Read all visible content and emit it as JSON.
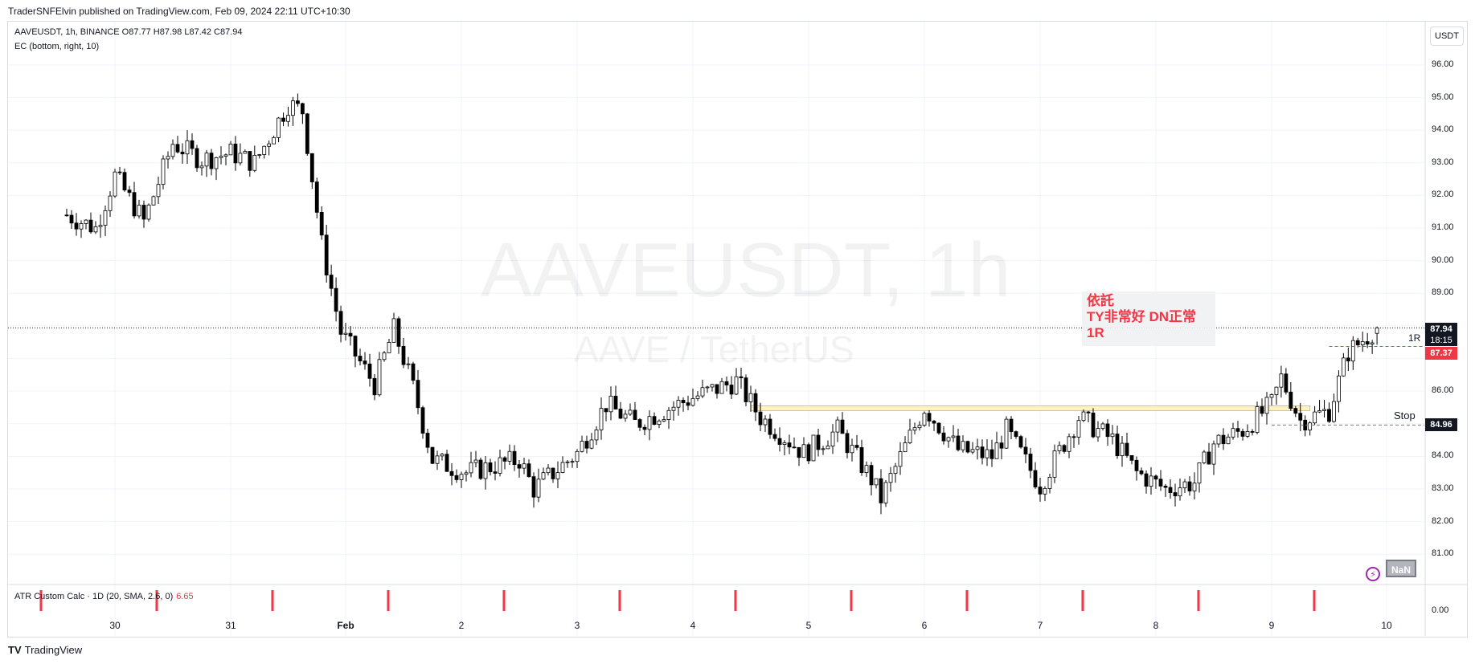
{
  "header": {
    "published": "TraderSNFElvin published on TradingView.com, Feb 09, 2024 22:11 UTC+10:30",
    "symbol_line": "AAVEUSDT, 1h, BINANCE  O87.77  H87.98  L87.42  C87.94",
    "indicator_line": "EC (bottom, right, 10)",
    "currency": "USDT"
  },
  "watermark": {
    "symbol": "AAVEUSDT, 1h",
    "description": "AAVE / TetherUS"
  },
  "note": {
    "lines": [
      "依託",
      "TY非常好 DN正常",
      "1R"
    ]
  },
  "right_labels": {
    "one_r": "1R",
    "stop": "Stop"
  },
  "price_tags": {
    "last": "87.94",
    "timer": "18:15",
    "target": "87.37",
    "stop": "84.96"
  },
  "nan_badge": "NaN",
  "atr": {
    "label": "ATR Custom Calc · 1D (20, SMA, 2.6, 0)",
    "value": "6.65",
    "bottom_axis": "0.00"
  },
  "footer": {
    "brand": "TradingView",
    "logo_glyph": "TV"
  },
  "colors": {
    "up": "#ffffff",
    "down": "#000000",
    "wick": "#000000",
    "accent": "#f23645",
    "zone": "#fff3c4",
    "grid": "#f0f3fa"
  },
  "chart_data": {
    "type": "candlestick",
    "symbol": "AAVEUSDT",
    "interval": "1h",
    "exchange": "BINANCE",
    "ylim": [
      81.0,
      96.0
    ],
    "y_ticks": [
      "96.00",
      "95.00",
      "94.00",
      "93.00",
      "92.00",
      "91.00",
      "90.00",
      "89.00",
      "88.00",
      "87.00",
      "86.00",
      "85.00",
      "84.00",
      "83.00",
      "82.00",
      "81.00"
    ],
    "x_ticks": [
      "30",
      "31",
      "Feb",
      "2",
      "3",
      "4",
      "5",
      "6",
      "7",
      "8",
      "9",
      "10"
    ],
    "last_ohlc": {
      "open": 87.77,
      "high": 87.98,
      "low": 87.42,
      "close": 87.94
    },
    "close_path": [
      {
        "date": "Jan 29 14:00",
        "close": 91.4
      },
      {
        "date": "Jan 29 20:00",
        "close": 91.0
      },
      {
        "date": "Jan 30 00:00",
        "close": 92.6
      },
      {
        "date": "Jan 30 06:00",
        "close": 91.2
      },
      {
        "date": "Jan 30 12:00",
        "close": 93.6
      },
      {
        "date": "Jan 30 18:00",
        "close": 93.1
      },
      {
        "date": "Jan 31 00:00",
        "close": 93.3
      },
      {
        "date": "Jan 31 05:00",
        "close": 93.0
      },
      {
        "date": "Jan 31 12:00",
        "close": 94.8
      },
      {
        "date": "Jan 31 15:00",
        "close": 94.6
      },
      {
        "date": "Jan 31 19:00",
        "close": 90.5
      },
      {
        "date": "Jan 31 23:00",
        "close": 87.8
      },
      {
        "date": "Feb 01 06:00",
        "close": 86.2
      },
      {
        "date": "Feb 01 10:00",
        "close": 87.9
      },
      {
        "date": "Feb 01 14:00",
        "close": 86.1
      },
      {
        "date": "Feb 01 18:00",
        "close": 83.9
      },
      {
        "date": "Feb 02 01:00",
        "close": 83.5
      },
      {
        "date": "Feb 02 12:00",
        "close": 83.9
      },
      {
        "date": "Feb 02 15:00",
        "close": 83.0
      },
      {
        "date": "Feb 03 00:00",
        "close": 84.1
      },
      {
        "date": "Feb 03 06:00",
        "close": 85.6
      },
      {
        "date": "Feb 03 12:00",
        "close": 85.0
      },
      {
        "date": "Feb 04 00:00",
        "close": 85.8
      },
      {
        "date": "Feb 04 09:00",
        "close": 86.3
      },
      {
        "date": "Feb 04 14:00",
        "close": 85.2
      },
      {
        "date": "Feb 04 23:00",
        "close": 84.1
      },
      {
        "date": "Feb 05 06:00",
        "close": 84.8
      },
      {
        "date": "Feb 05 13:00",
        "close": 83.3
      },
      {
        "date": "Feb 05 15:00",
        "close": 82.7
      },
      {
        "date": "Feb 05 21:00",
        "close": 84.6
      },
      {
        "date": "Feb 06 00:00",
        "close": 85.5
      },
      {
        "date": "Feb 06 07:00",
        "close": 84.2
      },
      {
        "date": "Feb 06 14:00",
        "close": 84.0
      },
      {
        "date": "Feb 06 17:00",
        "close": 84.8
      },
      {
        "date": "Feb 07 00:00",
        "close": 83.1
      },
      {
        "date": "Feb 07 08:00",
        "close": 85.2
      },
      {
        "date": "Feb 07 15:00",
        "close": 84.5
      },
      {
        "date": "Feb 07 20:00",
        "close": 83.5
      },
      {
        "date": "Feb 08 02:00",
        "close": 83.0
      },
      {
        "date": "Feb 08 08:00",
        "close": 83.2
      },
      {
        "date": "Feb 08 12:00",
        "close": 84.4
      },
      {
        "date": "Feb 08 18:00",
        "close": 84.8
      },
      {
        "date": "Feb 09 00:00",
        "close": 85.6
      },
      {
        "date": "Feb 09 02:00",
        "close": 86.4
      },
      {
        "date": "Feb 09 06:00",
        "close": 85.1
      },
      {
        "date": "Feb 09 12:00",
        "close": 85.4
      },
      {
        "date": "Feb 09 16:00",
        "close": 87.2
      },
      {
        "date": "Feb 09 22:00",
        "close": 87.94
      }
    ],
    "resistance_zone": [
      85.4,
      85.55
    ],
    "price_line": 87.94,
    "target_line": 87.37,
    "stop_line": 84.96,
    "atr_series": {
      "label": "ATR Custom Calc · 1D (20, SMA, 2.6, 0)",
      "value": 6.65,
      "marker_dates": [
        "Jan 29",
        "Jan 30",
        "Jan 31",
        "Feb 1",
        "Feb 2",
        "Feb 3",
        "Feb 4",
        "Feb 5",
        "Feb 6",
        "Feb 7",
        "Feb 8",
        "Feb 9"
      ]
    }
  }
}
